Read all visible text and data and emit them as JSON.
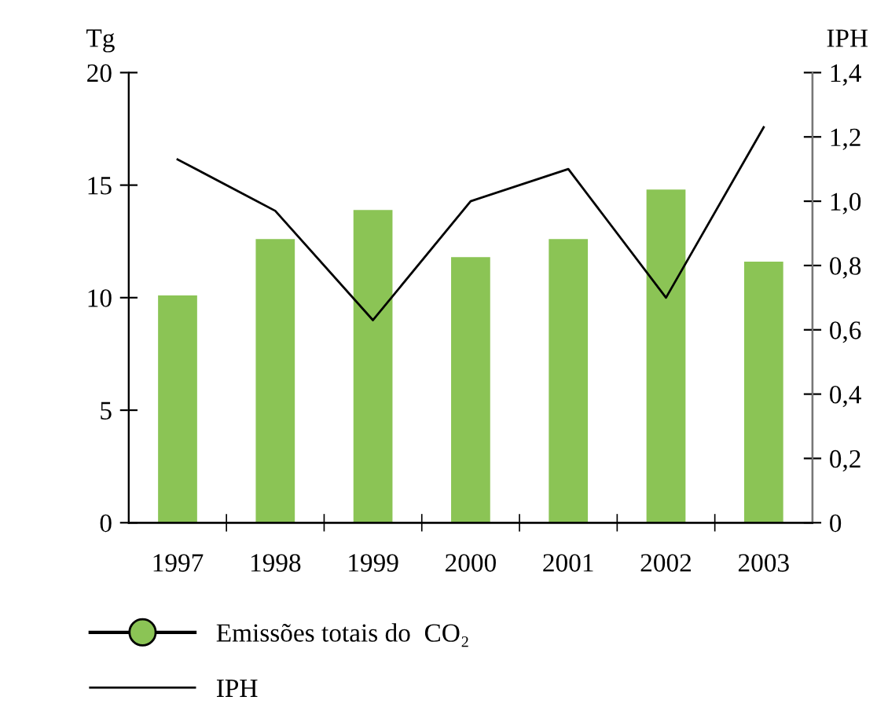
{
  "chart_data": {
    "type": "bar",
    "ylabel": "Tg",
    "y2label": "IPH",
    "categories": [
      "1997",
      "1998",
      "1999",
      "2000",
      "2001",
      "2002",
      "2003"
    ],
    "series": [
      {
        "name": "Emissões totais do  CO₂",
        "color": "#8bc455",
        "values": [
          10.1,
          12.6,
          13.9,
          11.8,
          12.6,
          14.8,
          11.6
        ]
      },
      {
        "name": "IPH",
        "type": "line",
        "axis": "y2",
        "color": "#000000",
        "values": [
          1.13,
          0.97,
          0.63,
          1.0,
          1.1,
          0.7,
          1.23
        ]
      }
    ],
    "ylim": [
      0,
      20
    ],
    "yticks": [
      0,
      5,
      10,
      15,
      20
    ],
    "y2lim": [
      0,
      1.4
    ],
    "y2ticks": [
      0,
      {
        "value": 0.2,
        "label": "0,2"
      },
      {
        "value": 0.4,
        "label": "0,4"
      },
      {
        "value": 0.6,
        "label": "0,6"
      },
      {
        "value": 0.8,
        "label": "0,8"
      },
      {
        "value": 1.0,
        "label": "1,0"
      },
      {
        "value": 1.2,
        "label": "1,2"
      },
      {
        "value": 1.4,
        "label": "1,4"
      }
    ],
    "grid": false,
    "legend": "bottom left",
    "marker": "none",
    "line_style": "solid"
  }
}
